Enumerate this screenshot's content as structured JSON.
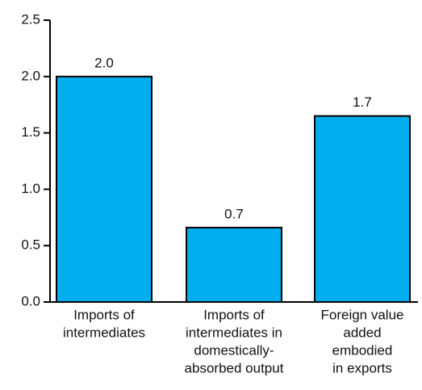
{
  "chart_data": {
    "type": "bar",
    "categories": [
      [
        "Imports of",
        "intermediates"
      ],
      [
        "Imports of",
        "intermediates in",
        "domestically-",
        "absorbed output"
      ],
      [
        "Foreign value",
        "added",
        "embodied",
        "in exports"
      ]
    ],
    "values": [
      2.0,
      0.66,
      1.65
    ],
    "value_labels": [
      "2.0",
      "0.7",
      "1.7"
    ],
    "color": "#00aeef",
    "ylim": [
      0,
      2.5
    ],
    "yticks": [
      {
        "value": 0,
        "label": "0.0"
      },
      0.5,
      {
        "value": 1,
        "label": "1.0"
      },
      1.5,
      {
        "value": 2,
        "label": "2.0"
      },
      2.5
    ]
  }
}
